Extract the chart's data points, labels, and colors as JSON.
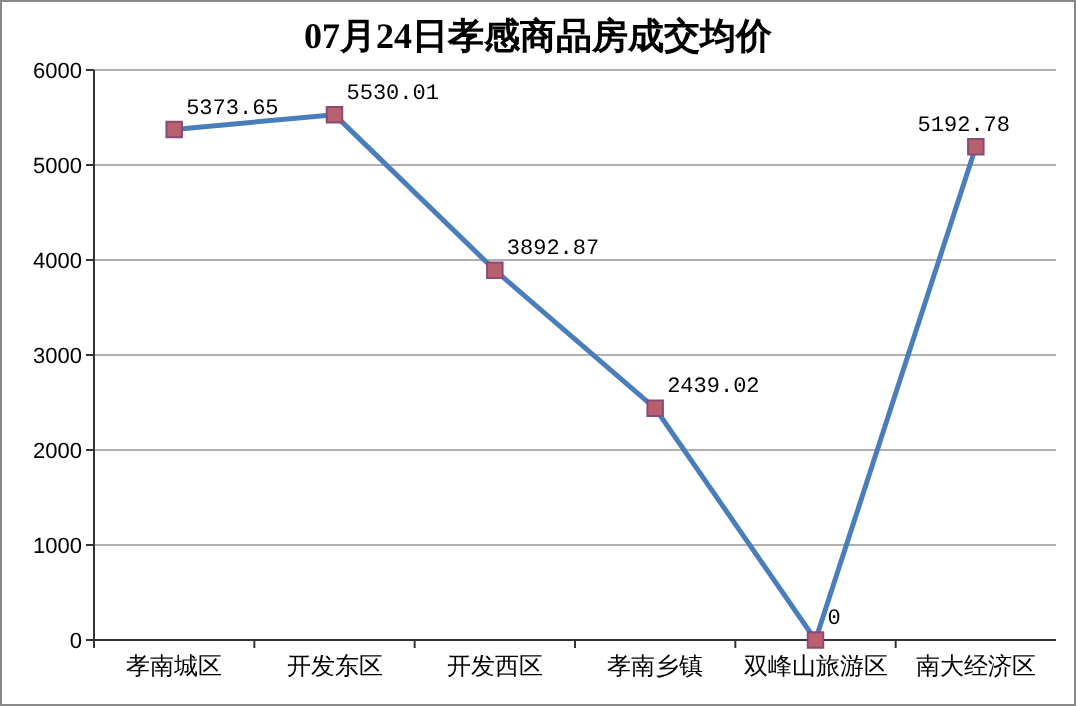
{
  "chart_data": {
    "type": "line",
    "title": "07月24日孝感商品房成交均价",
    "categories": [
      "孝南城区",
      "开发东区",
      "开发西区",
      "孝南乡镇",
      "双峰山旅游区",
      "南大经济区"
    ],
    "series": [
      {
        "color": "#4a7ebb",
        "values": [
          5373.65,
          5530.01,
          3892.87,
          2439.02,
          0,
          5192.78
        ]
      }
    ],
    "ylim": [
      0,
      6000
    ],
    "yticks": [
      0,
      1000,
      2000,
      3000,
      4000,
      5000,
      6000
    ],
    "grid": "y",
    "marker": "square",
    "data_labels": true
  }
}
